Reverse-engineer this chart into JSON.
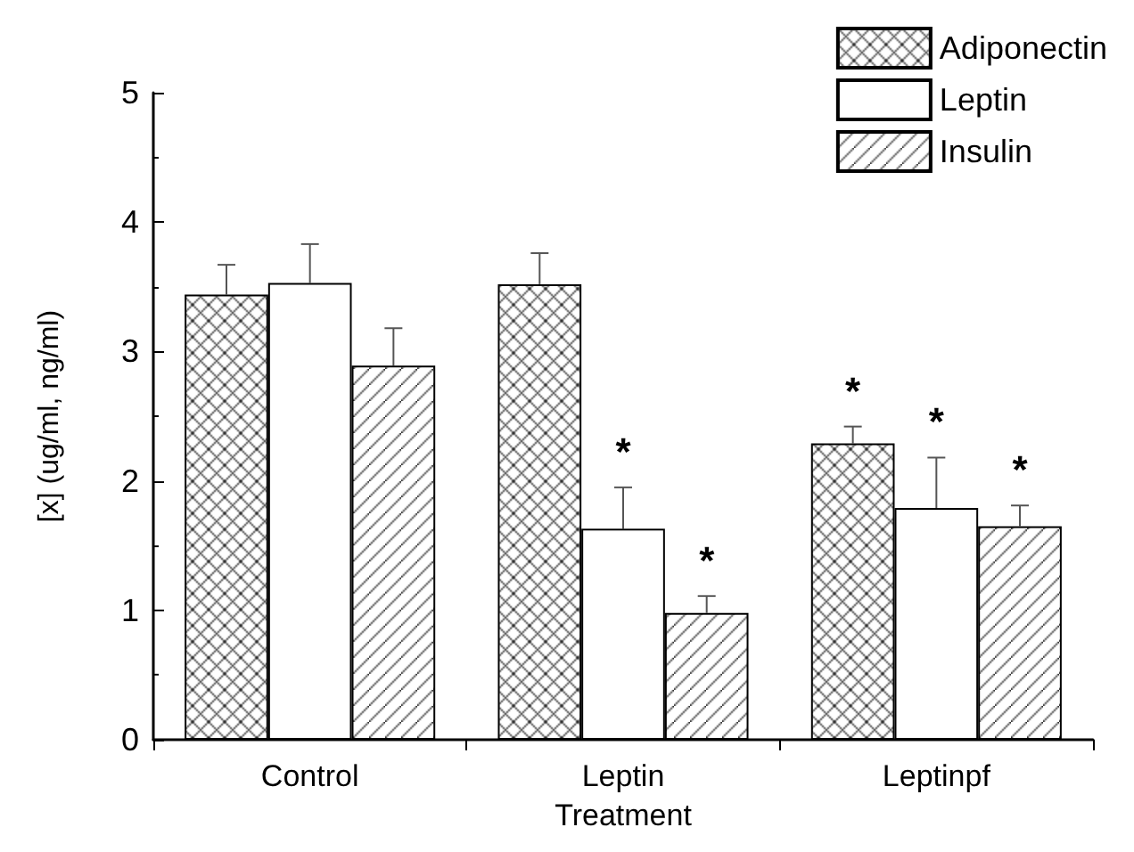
{
  "chart_data": {
    "type": "bar",
    "xlabel": "Treatment",
    "ylabel": "[x] (ug/ml, ng/ml)",
    "categories": [
      "Control",
      "Leptin",
      "Leptinpf"
    ],
    "series": [
      {
        "name": "Adiponectin",
        "color": "#000000",
        "values": [
          3.44,
          3.52,
          2.29
        ],
        "errors": [
          [
            3.44,
            3.67
          ],
          [
            3.52,
            3.76
          ],
          [
            2.29,
            2.42
          ]
        ],
        "value_labels": [
          null,
          null,
          "*"
        ]
      },
      {
        "name": "Leptin",
        "color": "#ffffff",
        "values": [
          3.53,
          1.63,
          1.79
        ],
        "errors": [
          [
            3.53,
            3.83
          ],
          [
            1.63,
            1.95
          ],
          [
            1.79,
            2.18
          ]
        ],
        "value_labels": [
          null,
          "*",
          "*"
        ]
      },
      {
        "name": "Insulin",
        "color": "#000000",
        "values": [
          2.89,
          0.98,
          1.65
        ],
        "errors": [
          [
            2.89,
            3.18
          ],
          [
            0.98,
            1.11
          ],
          [
            1.65,
            1.81
          ]
        ],
        "value_labels": [
          null,
          "*",
          "*"
        ]
      }
    ],
    "ylim": [
      0,
      5
    ],
    "yticks": [
      0,
      1,
      2,
      3,
      4,
      5
    ],
    "grid": false,
    "legend": "top right"
  }
}
